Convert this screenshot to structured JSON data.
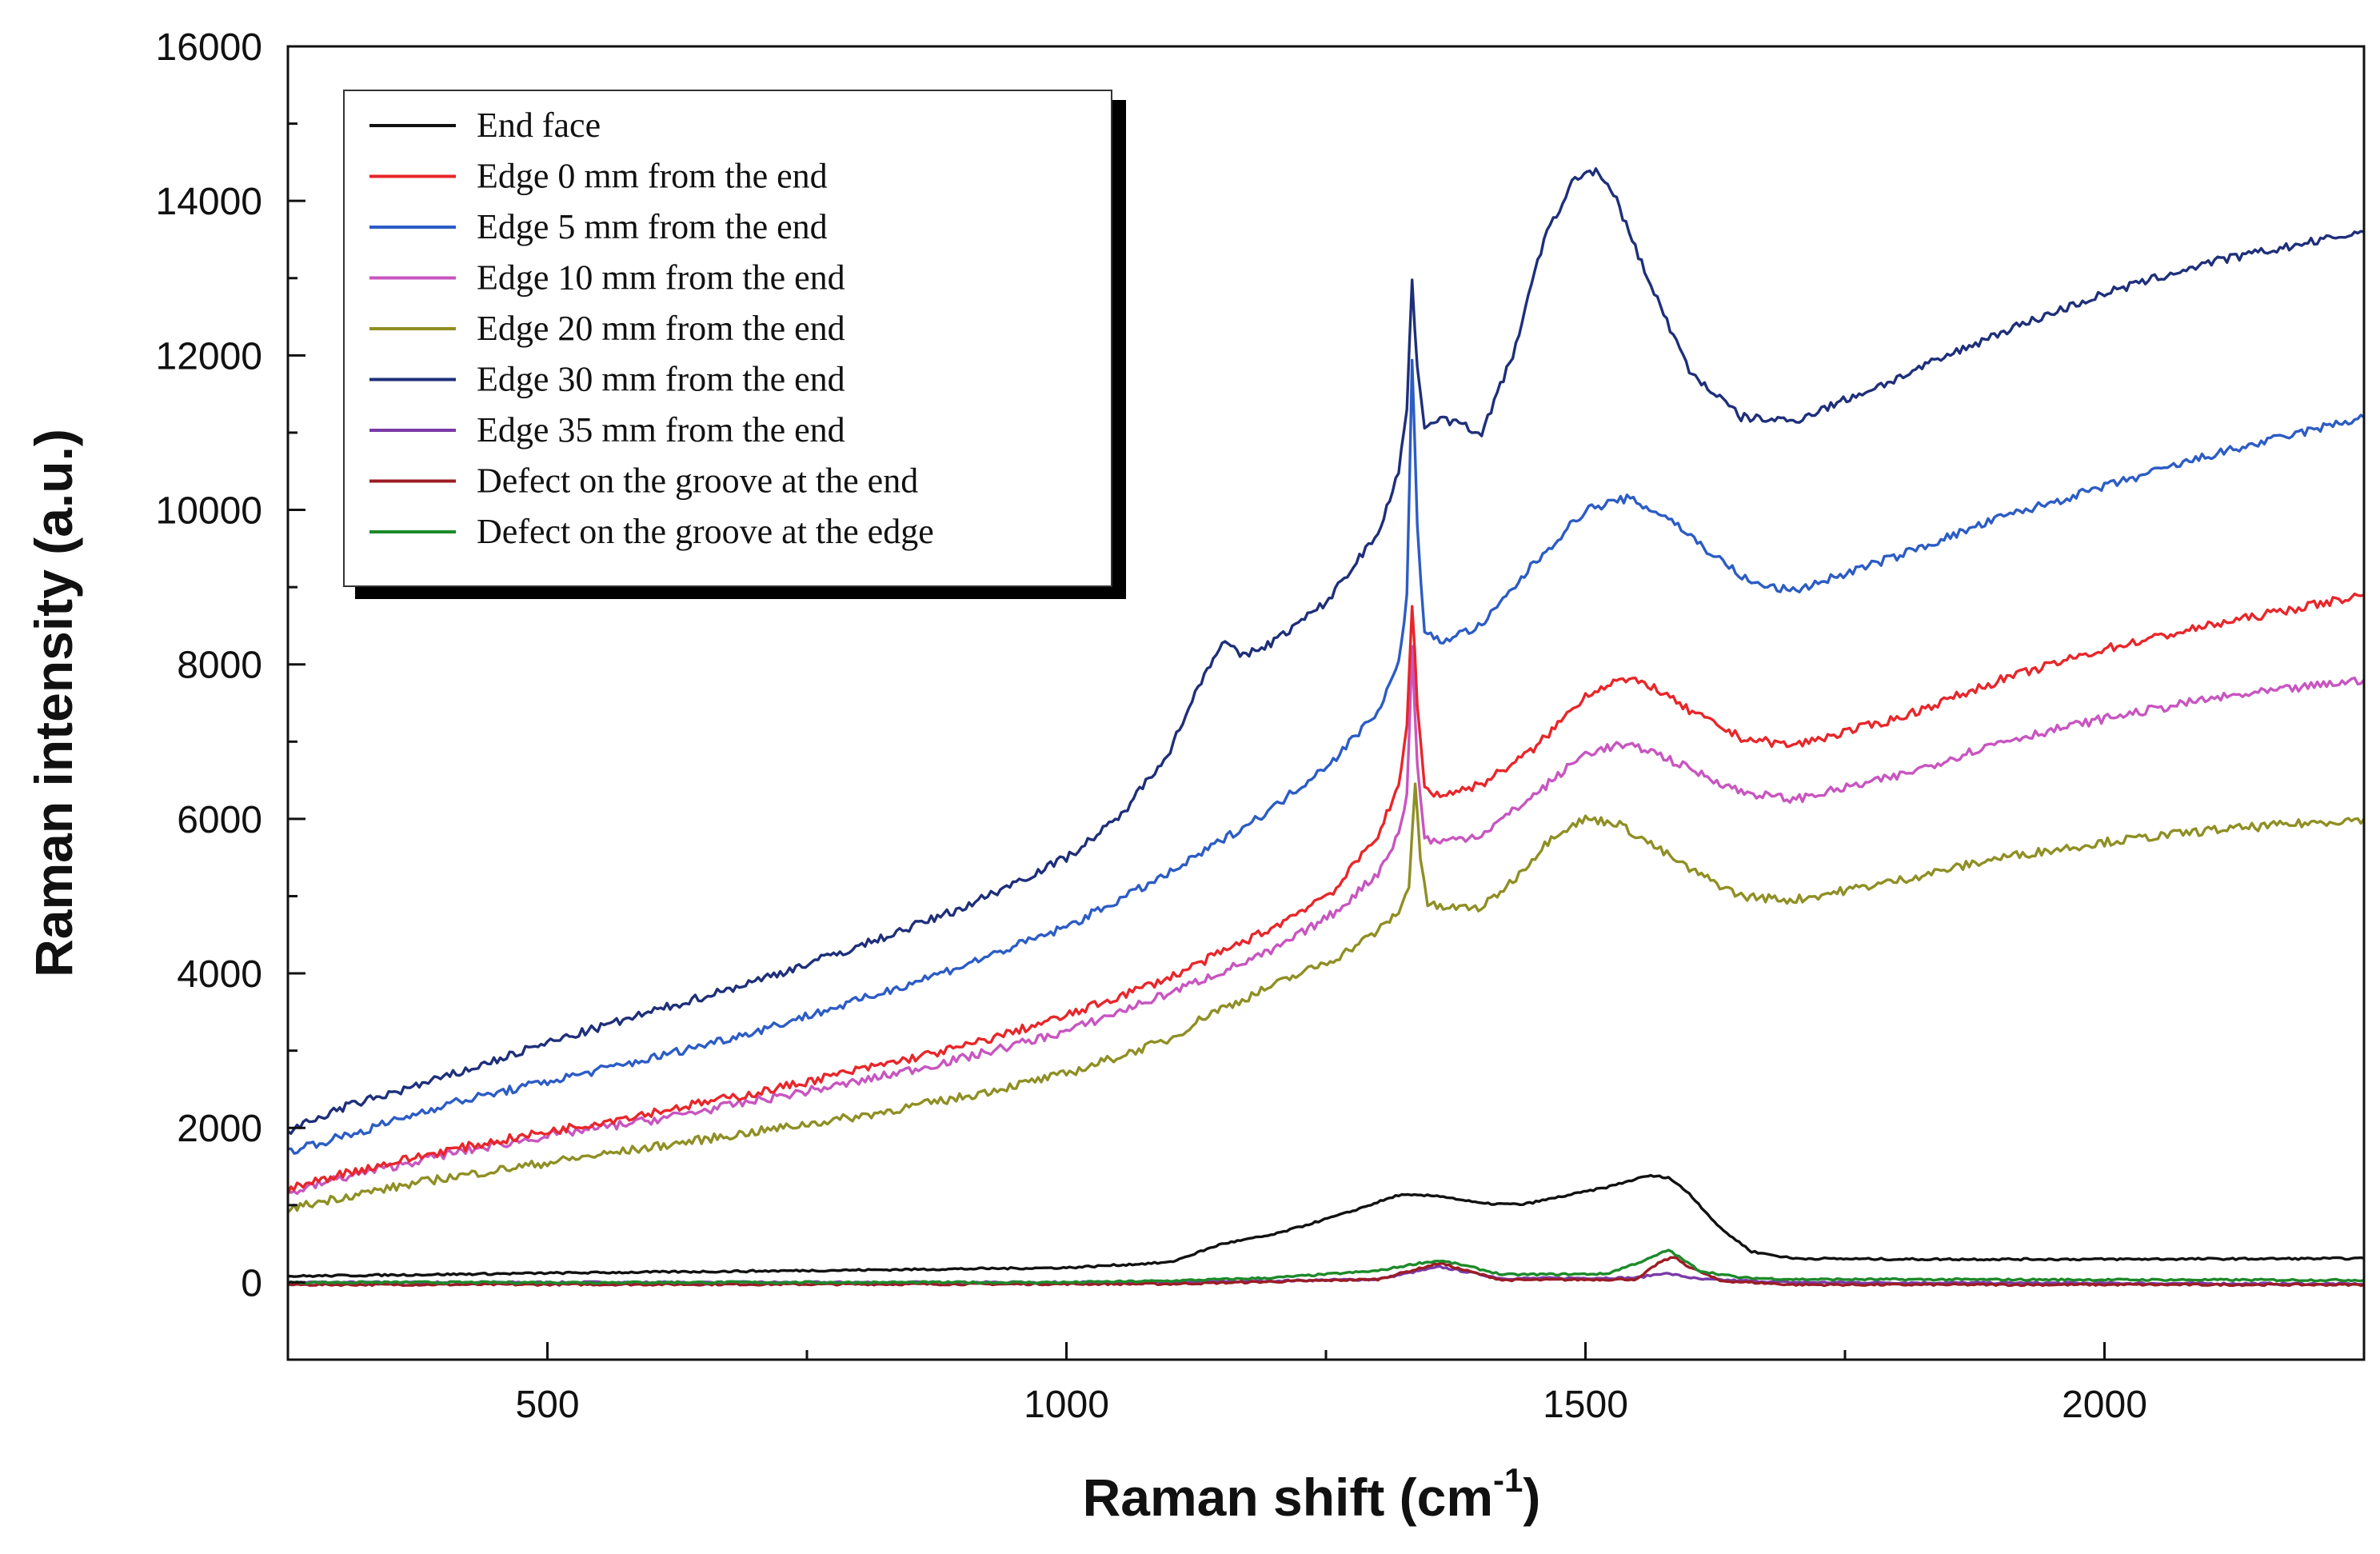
{
  "chart_data": {
    "type": "line",
    "xlabel": "Raman shift (cm",
    "xlabel_sup": "-1",
    "xlabel_end": ")",
    "ylabel": "Raman intensity (a.u.)",
    "xlim": [
      250,
      2250
    ],
    "ylim": [
      -1000,
      16000
    ],
    "x_ticks": [
      500,
      1000,
      1500,
      2000
    ],
    "x_tick_labels": [
      "500",
      "1000",
      "1500",
      "2000"
    ],
    "y_ticks": [
      0,
      2000,
      4000,
      6000,
      8000,
      10000,
      12000,
      14000,
      16000
    ],
    "y_tick_labels": [
      "0",
      "2000",
      "4000",
      "6000",
      "8000",
      "10000",
      "12000",
      "14000",
      "16000"
    ],
    "legend_position": "top-left",
    "series": [
      {
        "name": "End face",
        "color": "#111111",
        "x": [
          250,
          500,
          800,
          1000,
          1100,
          1150,
          1200,
          1270,
          1320,
          1360,
          1400,
          1440,
          1480,
          1520,
          1560,
          1580,
          1600,
          1630,
          1660,
          1700,
          1800,
          2000,
          2250
        ],
        "y": [
          80,
          120,
          160,
          190,
          260,
          500,
          620,
          900,
          1130,
          1120,
          1020,
          1010,
          1120,
          1230,
          1380,
          1360,
          1150,
          700,
          400,
          310,
          300,
          300,
          310
        ]
      },
      {
        "name": "Edge 0 mm from the end",
        "color": "#e8262a",
        "x": [
          250,
          300,
          400,
          500,
          600,
          700,
          800,
          900,
          1000,
          1100,
          1200,
          1260,
          1300,
          1320,
          1328,
          1333,
          1338,
          1345,
          1360,
          1400,
          1450,
          1500,
          1530,
          1560,
          1600,
          1650,
          1700,
          1800,
          1900,
          2000,
          2100,
          2250
        ],
        "y": [
          1200,
          1400,
          1700,
          1950,
          2200,
          2450,
          2750,
          3050,
          3450,
          3950,
          4600,
          5100,
          5800,
          6400,
          7200,
          8800,
          7500,
          6400,
          6300,
          6450,
          6900,
          7600,
          7800,
          7750,
          7400,
          7050,
          6950,
          7300,
          7800,
          8200,
          8500,
          8900
        ]
      },
      {
        "name": "Edge 5 mm from the end",
        "color": "#2c5cc5",
        "x": [
          250,
          320,
          400,
          500,
          600,
          700,
          800,
          900,
          1000,
          1100,
          1200,
          1260,
          1300,
          1320,
          1328,
          1333,
          1338,
          1345,
          1360,
          1400,
          1450,
          1500,
          1540,
          1580,
          1620,
          1660,
          1700,
          1800,
          1900,
          2000,
          2100,
          2250
        ],
        "y": [
          1700,
          1950,
          2300,
          2600,
          2900,
          3250,
          3650,
          4100,
          4600,
          5300,
          6150,
          6800,
          7400,
          8000,
          8900,
          11900,
          9800,
          8400,
          8300,
          8500,
          9300,
          10000,
          10150,
          9900,
          9450,
          9050,
          8950,
          9400,
          9900,
          10300,
          10700,
          11200
        ]
      },
      {
        "name": "Edge 10 mm from the end",
        "color": "#c855c0",
        "x": [
          250,
          300,
          400,
          500,
          600,
          700,
          800,
          900,
          1000,
          1100,
          1200,
          1260,
          1300,
          1320,
          1328,
          1333,
          1338,
          1345,
          1360,
          1400,
          1450,
          1500,
          1530,
          1560,
          1600,
          1650,
          1700,
          1800,
          1900,
          2000,
          2100,
          2250
        ],
        "y": [
          1150,
          1350,
          1650,
          1900,
          2100,
          2350,
          2600,
          2900,
          3250,
          3750,
          4300,
          4800,
          5300,
          5800,
          6300,
          8200,
          6700,
          5750,
          5700,
          5800,
          6300,
          6850,
          6950,
          6900,
          6650,
          6350,
          6250,
          6550,
          7000,
          7300,
          7550,
          7800
        ]
      },
      {
        "name": "Edge 20 mm from the end",
        "color": "#8f8f24",
        "x": [
          250,
          300,
          400,
          500,
          600,
          700,
          800,
          900,
          1000,
          1100,
          1140,
          1160,
          1200,
          1260,
          1300,
          1320,
          1330,
          1336,
          1341,
          1348,
          1360,
          1400,
          1430,
          1470,
          1500,
          1530,
          1560,
          1600,
          1650,
          1700,
          1800,
          1900,
          2000,
          2100,
          2250
        ],
        "y": [
          950,
          1100,
          1350,
          1550,
          1750,
          1950,
          2150,
          2400,
          2700,
          3150,
          3500,
          3600,
          3850,
          4200,
          4550,
          4800,
          5100,
          6500,
          5500,
          4900,
          4850,
          4850,
          5200,
          5800,
          6000,
          5950,
          5700,
          5350,
          5000,
          4950,
          5200,
          5500,
          5700,
          5850,
          6000
        ]
      },
      {
        "name": "Edge 30 mm from the end",
        "color": "#1e2f7a",
        "x": [
          250,
          300,
          350,
          400,
          500,
          600,
          700,
          800,
          900,
          1000,
          1050,
          1100,
          1130,
          1150,
          1170,
          1200,
          1250,
          1300,
          1320,
          1328,
          1333,
          1338,
          1345,
          1360,
          1400,
          1430,
          1460,
          1490,
          1510,
          1530,
          1560,
          1600,
          1650,
          1700,
          1800,
          1900,
          2000,
          2100,
          2250
        ],
        "y": [
          1950,
          2250,
          2450,
          2650,
          3100,
          3500,
          3900,
          4350,
          4850,
          5500,
          6000,
          6900,
          7800,
          8300,
          8100,
          8300,
          8800,
          9700,
          10500,
          11300,
          13000,
          11800,
          11100,
          11200,
          11000,
          12000,
          13500,
          14300,
          14400,
          14000,
          13000,
          11800,
          11200,
          11150,
          11700,
          12300,
          12800,
          13200,
          13600
        ]
      },
      {
        "name": "Edge 35 mm from the end",
        "color": "#7a3aa8",
        "x": [
          250,
          1100,
          1300,
          1340,
          1360,
          1380,
          1420,
          1550,
          1575,
          1590,
          1610,
          1700,
          2250
        ],
        "y": [
          0,
          0,
          40,
          150,
          200,
          150,
          50,
          60,
          120,
          90,
          40,
          0,
          -20
        ]
      },
      {
        "name": "Defect on the groove at the end",
        "color": "#9c1c25",
        "x": [
          250,
          1100,
          1300,
          1340,
          1360,
          1380,
          1420,
          1550,
          1570,
          1585,
          1600,
          1630,
          1700,
          2250
        ],
        "y": [
          -30,
          -20,
          40,
          180,
          250,
          170,
          30,
          40,
          250,
          330,
          200,
          20,
          -30,
          -30
        ]
      },
      {
        "name": "Defect on the groove at the edge",
        "color": "#1d8a2a",
        "x": [
          250,
          1000,
          1100,
          1200,
          1300,
          1340,
          1360,
          1380,
          1420,
          1520,
          1560,
          1580,
          1590,
          1610,
          1650,
          1700,
          2250
        ],
        "y": [
          0,
          0,
          20,
          60,
          150,
          250,
          280,
          230,
          100,
          110,
          300,
          420,
          330,
          150,
          60,
          40,
          30
        ]
      }
    ]
  }
}
